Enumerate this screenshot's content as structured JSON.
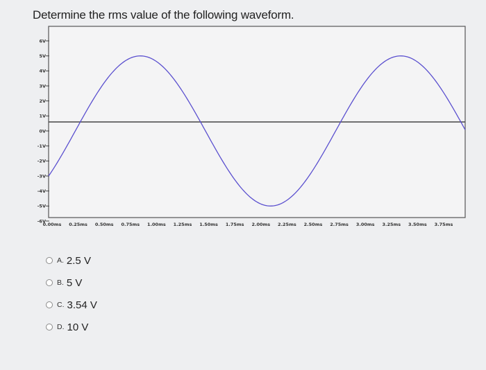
{
  "question": "Determine the rms value of the following waveform.",
  "chart_data": {
    "type": "line",
    "title": "",
    "xlabel": "",
    "ylabel": "",
    "y_ticks": [
      "6V",
      "5V",
      "4V",
      "3V",
      "2V",
      "1V",
      "0V",
      "-1V",
      "-2V",
      "-3V",
      "-4V",
      "-5V",
      "-6V"
    ],
    "x_ticks": [
      "0.00ms",
      "0.25ms",
      "0.50ms",
      "0.75ms",
      "1.00ms",
      "1.25ms",
      "1.50ms",
      "1.75ms",
      "2.00ms",
      "2.25ms",
      "2.50ms",
      "2.75ms",
      "3.00ms",
      "3.25ms",
      "3.50ms",
      "3.75ms"
    ],
    "ylim": [
      -6,
      6
    ],
    "xlim": [
      0,
      4.0
    ],
    "grid": false,
    "zero_line": true,
    "series": [
      {
        "amplitude_v": 5,
        "period_ms": 2.5,
        "phase_deg": -36.9,
        "color": "#5a4fcf",
        "x_ms": [
          0.0,
          0.1,
          0.2,
          0.3,
          0.4,
          0.5,
          0.6,
          0.7,
          0.8,
          0.9,
          1.0,
          1.1,
          1.2,
          1.3,
          1.4,
          1.5,
          1.6,
          1.7,
          1.8,
          1.9,
          2.0,
          2.1,
          2.2,
          2.3,
          2.4,
          2.5,
          2.6,
          2.7,
          2.8,
          2.9,
          3.0,
          3.1,
          3.2,
          3.3,
          3.4,
          3.5,
          3.6,
          3.7,
          3.8,
          3.9,
          4.0
        ],
        "y_v": [
          -3.0,
          -1.94,
          -0.7,
          0.55,
          1.77,
          2.86,
          3.76,
          4.44,
          4.86,
          5.0,
          4.84,
          4.41,
          3.72,
          2.81,
          1.72,
          0.5,
          -0.75,
          -1.98,
          -3.05,
          -3.95,
          -4.55,
          -4.93,
          -4.99,
          -4.75,
          -4.21,
          -3.0,
          -1.94,
          -0.7,
          0.55,
          1.77,
          2.86,
          3.76,
          4.44,
          4.86,
          5.0,
          4.84,
          4.41,
          3.72,
          2.81,
          1.72,
          0.5
        ]
      }
    ]
  },
  "options": [
    {
      "letter": "A.",
      "text": "2.5 V"
    },
    {
      "letter": "B.",
      "text": "5 V"
    },
    {
      "letter": "C.",
      "text": "3.54 V"
    },
    {
      "letter": "D.",
      "text": "10 V"
    }
  ]
}
